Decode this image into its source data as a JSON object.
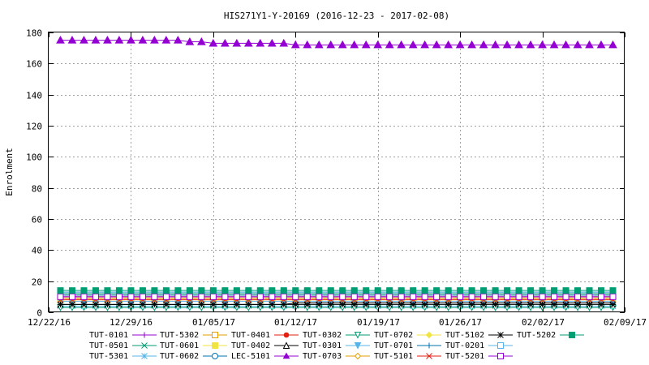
{
  "chart_data": {
    "type": "line",
    "title": "HIS271Y1-Y-20169 (2016-12-23 - 2017-02-08)",
    "xlabel": "",
    "ylabel": "Enrolment",
    "xlim": [
      "2016-12-22",
      "2017-02-09"
    ],
    "ylim": [
      0,
      180
    ],
    "yticks": [
      0,
      20,
      40,
      60,
      80,
      100,
      120,
      140,
      160,
      180
    ],
    "xticks": [
      "2016-12-22",
      "2016-12-29",
      "2017-01-05",
      "2017-01-12",
      "2017-01-19",
      "2017-01-26",
      "2017-02-02",
      "2017-02-09"
    ],
    "xtick_labels": [
      "12/22/16",
      "12/29/16",
      "01/05/17",
      "01/12/17",
      "01/19/17",
      "01/26/17",
      "02/02/17",
      "02/09/17"
    ],
    "grid": true,
    "legend_position": "bottom",
    "start_date": "2016-12-23",
    "end_date": "2017-02-08",
    "series": [
      {
        "name": "TUT-0101",
        "color": "#9400d3",
        "marker": "plus",
        "segments": [
          {
            "from": "2016-12-23",
            "to": "2017-02-08",
            "value": 10
          }
        ]
      },
      {
        "name": "TUT-0501",
        "color": "#009e73",
        "marker": "x",
        "segments": [
          {
            "from": "2016-12-23",
            "to": "2017-02-08",
            "value": 12
          }
        ]
      },
      {
        "name": "TUT-5301",
        "color": "#56b4e9",
        "marker": "star",
        "segments": [
          {
            "from": "2016-12-23",
            "to": "2017-02-08",
            "value": 4
          }
        ]
      },
      {
        "name": "TUT-5302",
        "color": "#e69f00",
        "marker": "square-open",
        "segments": [
          {
            "from": "2016-12-23",
            "to": "2017-02-08",
            "value": 9
          }
        ]
      },
      {
        "name": "TUT-0601",
        "color": "#f0e442",
        "marker": "square",
        "segments": [
          {
            "from": "2016-12-23",
            "to": "2017-02-08",
            "value": 8
          }
        ]
      },
      {
        "name": "TUT-0602",
        "color": "#0072b2",
        "marker": "circle-open",
        "segments": [
          {
            "from": "2016-12-23",
            "to": "2017-02-08",
            "value": 13
          }
        ]
      },
      {
        "name": "TUT-0401",
        "color": "#e51e10",
        "marker": "circle",
        "segments": [
          {
            "from": "2016-12-23",
            "to": "2017-02-08",
            "value": 10
          }
        ]
      },
      {
        "name": "TUT-0402",
        "color": "#000000",
        "marker": "triangle-open",
        "segments": [
          {
            "from": "2016-12-23",
            "to": "2017-01-11",
            "value": 5
          },
          {
            "from": "2017-01-12",
            "to": "2017-02-08",
            "value": 6
          }
        ]
      },
      {
        "name": "LEC-5101",
        "color": "#9400d3",
        "marker": "triangle",
        "segments": [
          {
            "from": "2016-12-23",
            "to": "2017-01-02",
            "value": 175
          },
          {
            "from": "2017-01-03",
            "to": "2017-01-04",
            "value": 174
          },
          {
            "from": "2017-01-05",
            "to": "2017-01-11",
            "value": 173
          },
          {
            "from": "2017-01-12",
            "to": "2017-02-08",
            "value": 172
          }
        ]
      },
      {
        "name": "TUT-0302",
        "color": "#009e73",
        "marker": "triangle-down-open",
        "segments": [
          {
            "from": "2016-12-23",
            "to": "2017-02-08",
            "value": 3
          }
        ]
      },
      {
        "name": "TUT-0301",
        "color": "#56b4e9",
        "marker": "triangle-down",
        "segments": [
          {
            "from": "2016-12-23",
            "to": "2017-02-08",
            "value": 7
          }
        ]
      },
      {
        "name": "TUT-0703",
        "color": "#e69f00",
        "marker": "diamond-open",
        "segments": [
          {
            "from": "2016-12-23",
            "to": "2017-02-08",
            "value": 9
          }
        ]
      },
      {
        "name": "TUT-0702",
        "color": "#f0e442",
        "marker": "diamond",
        "segments": [
          {
            "from": "2016-12-23",
            "to": "2017-02-08",
            "value": 11
          }
        ]
      },
      {
        "name": "TUT-0701",
        "color": "#0072b2",
        "marker": "plus",
        "segments": [
          {
            "from": "2016-12-23",
            "to": "2017-02-08",
            "value": 11
          }
        ]
      },
      {
        "name": "TUT-5101",
        "color": "#e51e10",
        "marker": "x",
        "segments": [
          {
            "from": "2016-12-23",
            "to": "2017-02-08",
            "value": 8
          }
        ]
      },
      {
        "name": "TUT-5102",
        "color": "#000000",
        "marker": "star",
        "segments": [
          {
            "from": "2016-12-23",
            "to": "2017-02-08",
            "value": 5
          }
        ]
      },
      {
        "name": "TUT-0201",
        "color": "#56b4e9",
        "marker": "square-open",
        "segments": [
          {
            "from": "2016-12-23",
            "to": "2017-02-08",
            "value": 13
          }
        ]
      },
      {
        "name": "TUT-5201",
        "color": "#9400d3",
        "marker": "square-open",
        "segments": [
          {
            "from": "2016-12-23",
            "to": "2017-02-08",
            "value": 10
          }
        ]
      },
      {
        "name": "TUT-5202",
        "color": "#009e73",
        "marker": "square",
        "segments": [
          {
            "from": "2016-12-23",
            "to": "2017-02-08",
            "value": 14
          }
        ]
      }
    ]
  }
}
